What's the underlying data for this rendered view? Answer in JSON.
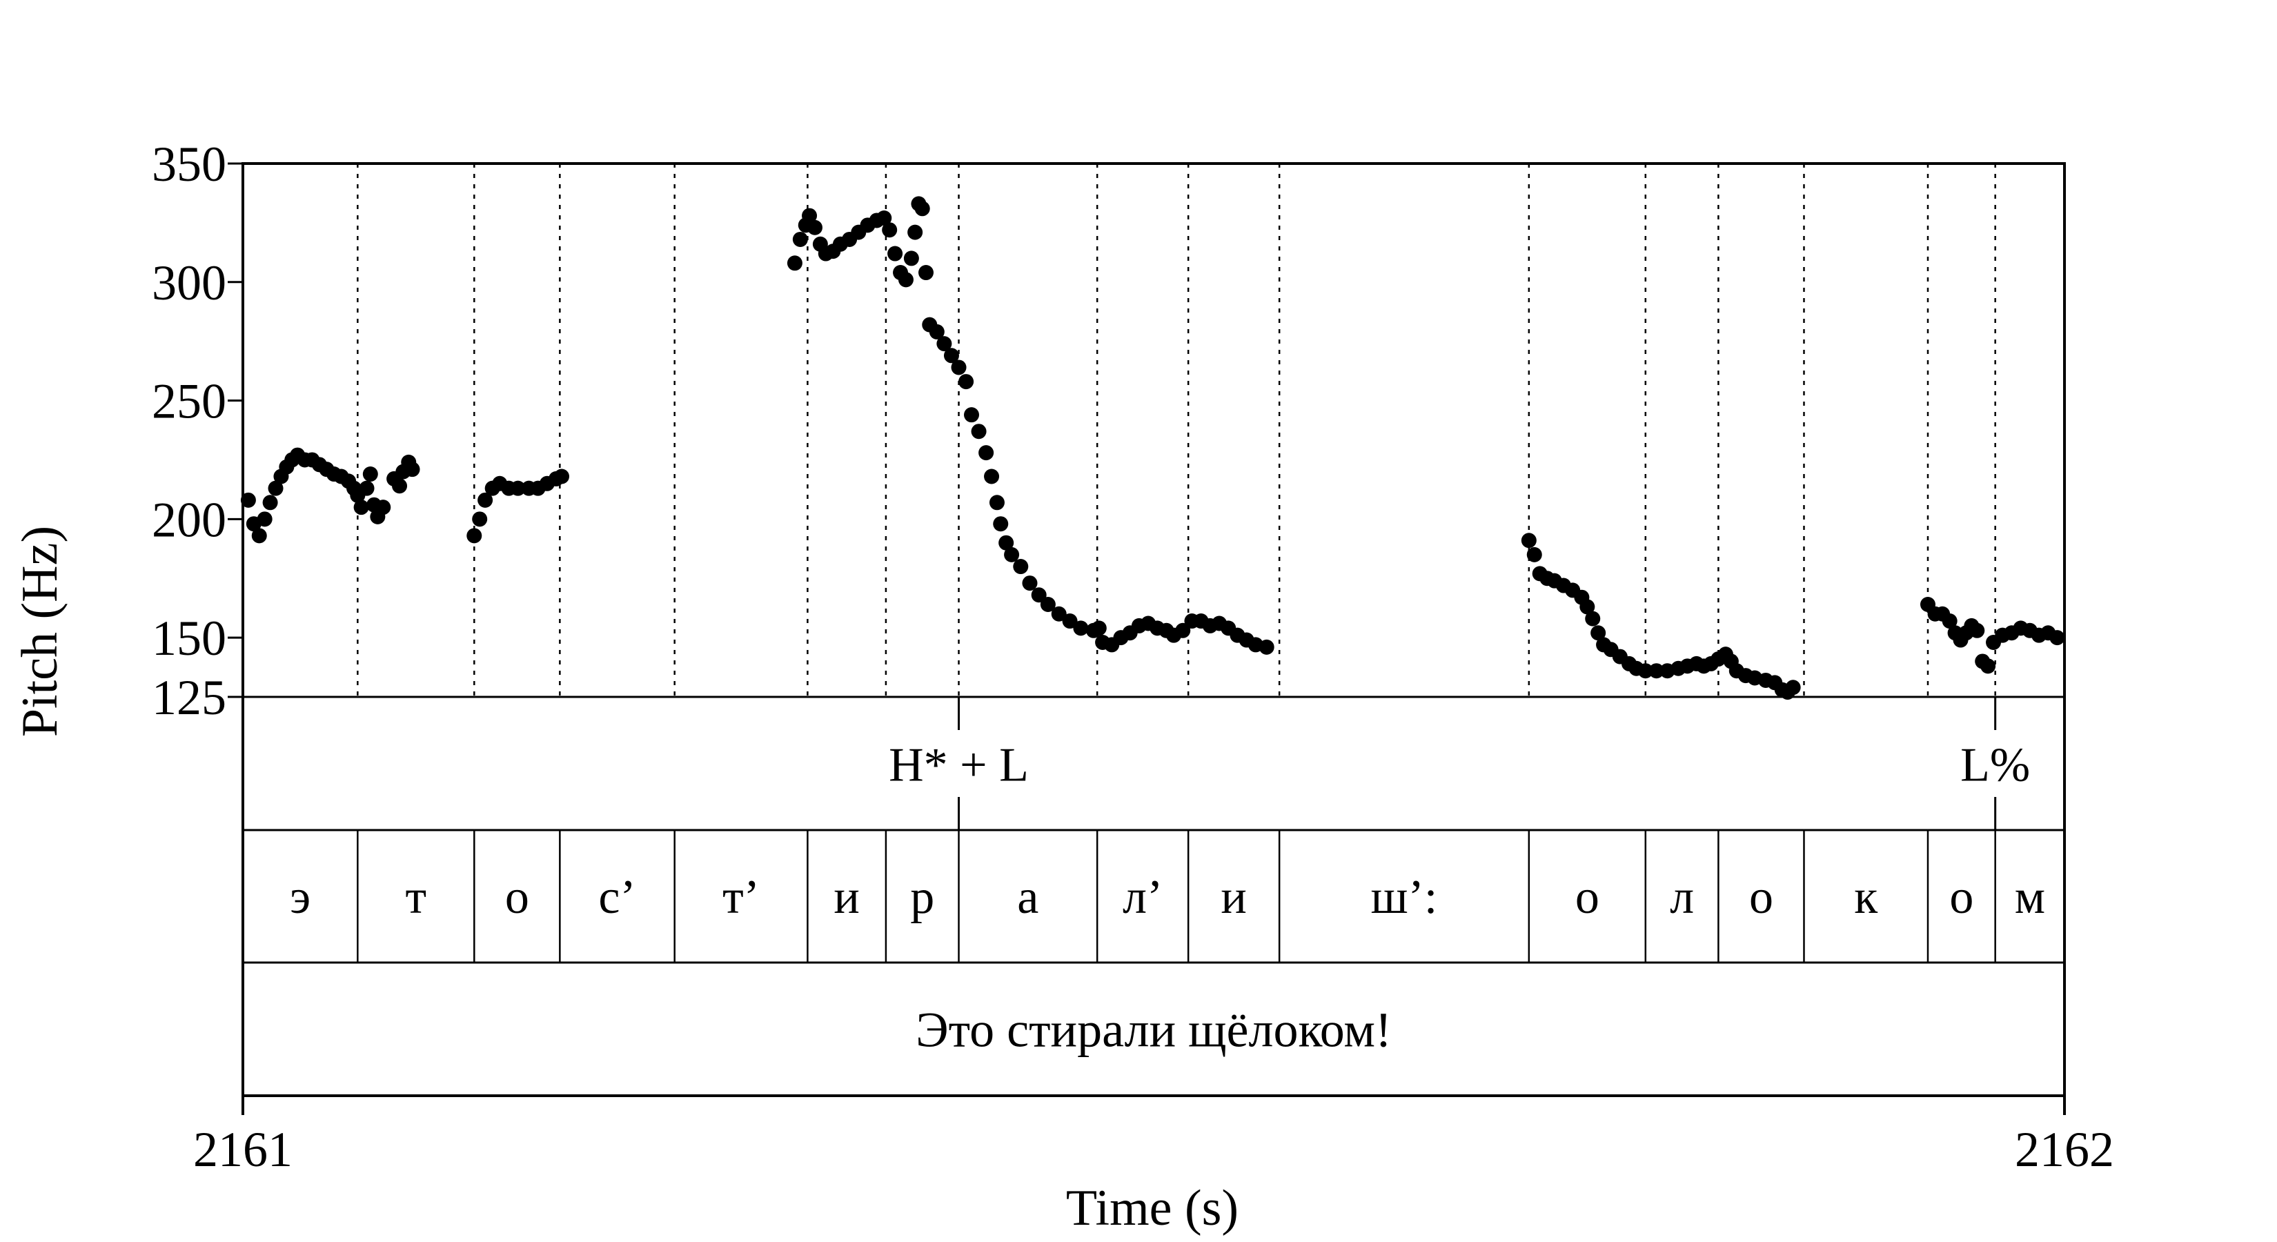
{
  "chart_data": {
    "type": "scatter",
    "xlabel": "Time (s)",
    "ylabel": "Pitch (Hz)",
    "xlim": [
      2161,
      2162
    ],
    "ylim": [
      125,
      350
    ],
    "x_ticks": [
      "2161",
      "2162"
    ],
    "y_ticks": [
      {
        "value": 350,
        "label": "350"
      },
      {
        "value": 300,
        "label": "300"
      },
      {
        "value": 250,
        "label": "250"
      },
      {
        "value": 200,
        "label": "200"
      },
      {
        "value": 150,
        "label": "150"
      },
      {
        "value": 125,
        "label": "125"
      }
    ],
    "segment_boundaries": [
      2161.063,
      2161.127,
      2161.174,
      2161.237,
      2161.31,
      2161.353,
      2161.393,
      2161.469,
      2161.519,
      2161.569,
      2161.706,
      2161.77,
      2161.81,
      2161.857,
      2161.925,
      2161.962
    ],
    "segments": [
      {
        "label": "э",
        "start": 2161.0,
        "end": 2161.063
      },
      {
        "label": "т",
        "start": 2161.063,
        "end": 2161.127
      },
      {
        "label": "о",
        "start": 2161.127,
        "end": 2161.174
      },
      {
        "label": "с’",
        "start": 2161.174,
        "end": 2161.237
      },
      {
        "label": "т’",
        "start": 2161.237,
        "end": 2161.31
      },
      {
        "label": "и",
        "start": 2161.31,
        "end": 2161.353
      },
      {
        "label": "р",
        "start": 2161.353,
        "end": 2161.393
      },
      {
        "label": "а",
        "start": 2161.393,
        "end": 2161.469
      },
      {
        "label": "л’",
        "start": 2161.469,
        "end": 2161.519
      },
      {
        "label": "и",
        "start": 2161.519,
        "end": 2161.569
      },
      {
        "label": "ш’:",
        "start": 2161.569,
        "end": 2161.706
      },
      {
        "label": "о",
        "start": 2161.706,
        "end": 2161.77
      },
      {
        "label": "л",
        "start": 2161.77,
        "end": 2161.81
      },
      {
        "label": "о",
        "start": 2161.81,
        "end": 2161.857
      },
      {
        "label": "к",
        "start": 2161.857,
        "end": 2161.925
      },
      {
        "label": "о",
        "start": 2161.925,
        "end": 2161.962
      },
      {
        "label": "м",
        "start": 2161.962,
        "end": 2162.0
      }
    ],
    "tones": [
      {
        "label": "H* + L",
        "time": 2161.393
      },
      {
        "label": "L%",
        "time": 2161.962
      }
    ],
    "sentence": "Это стирали щёлоком!",
    "series": [
      {
        "points": [
          [
            2161.003,
            208
          ],
          [
            2161.006,
            198
          ],
          [
            2161.009,
            193
          ],
          [
            2161.012,
            200
          ],
          [
            2161.015,
            207
          ],
          [
            2161.018,
            213
          ],
          [
            2161.021,
            218
          ],
          [
            2161.024,
            222
          ],
          [
            2161.027,
            225
          ],
          [
            2161.03,
            227
          ],
          [
            2161.034,
            225
          ],
          [
            2161.038,
            225
          ],
          [
            2161.042,
            223
          ],
          [
            2161.046,
            221
          ],
          [
            2161.05,
            219
          ],
          [
            2161.054,
            218
          ],
          [
            2161.058,
            216
          ],
          [
            2161.061,
            213
          ],
          [
            2161.063,
            210
          ],
          [
            2161.065,
            205
          ],
          [
            2161.068,
            213
          ],
          [
            2161.07,
            219
          ],
          [
            2161.072,
            206
          ],
          [
            2161.074,
            201
          ],
          [
            2161.077,
            205
          ],
          [
            2161.083,
            217
          ],
          [
            2161.086,
            214
          ],
          [
            2161.088,
            220
          ],
          [
            2161.091,
            224
          ],
          [
            2161.093,
            221
          ]
        ]
      },
      {
        "points": [
          [
            2161.127,
            193
          ],
          [
            2161.13,
            200
          ],
          [
            2161.133,
            208
          ],
          [
            2161.137,
            213
          ],
          [
            2161.141,
            215
          ],
          [
            2161.146,
            213
          ],
          [
            2161.151,
            213
          ],
          [
            2161.157,
            213
          ],
          [
            2161.162,
            213
          ],
          [
            2161.167,
            215
          ],
          [
            2161.172,
            217
          ],
          [
            2161.175,
            218
          ]
        ]
      },
      {
        "points": [
          [
            2161.303,
            308
          ],
          [
            2161.306,
            318
          ],
          [
            2161.309,
            324
          ],
          [
            2161.311,
            328
          ],
          [
            2161.314,
            323
          ],
          [
            2161.317,
            316
          ],
          [
            2161.32,
            312
          ],
          [
            2161.324,
            313
          ],
          [
            2161.328,
            316
          ],
          [
            2161.333,
            318
          ],
          [
            2161.338,
            321
          ],
          [
            2161.343,
            324
          ],
          [
            2161.348,
            326
          ],
          [
            2161.352,
            327
          ],
          [
            2161.355,
            322
          ],
          [
            2161.358,
            312
          ],
          [
            2161.361,
            304
          ],
          [
            2161.364,
            301
          ],
          [
            2161.367,
            310
          ],
          [
            2161.369,
            321
          ],
          [
            2161.371,
            333
          ],
          [
            2161.373,
            331
          ],
          [
            2161.375,
            304
          ],
          [
            2161.377,
            282
          ],
          [
            2161.381,
            279
          ],
          [
            2161.385,
            274
          ],
          [
            2161.389,
            269
          ],
          [
            2161.393,
            264
          ],
          [
            2161.397,
            258
          ],
          [
            2161.4,
            244
          ],
          [
            2161.404,
            237
          ],
          [
            2161.408,
            228
          ],
          [
            2161.411,
            218
          ],
          [
            2161.414,
            207
          ],
          [
            2161.416,
            198
          ],
          [
            2161.419,
            190
          ],
          [
            2161.422,
            185
          ],
          [
            2161.427,
            180
          ],
          [
            2161.432,
            173
          ],
          [
            2161.437,
            168
          ],
          [
            2161.442,
            164
          ],
          [
            2161.448,
            160
          ],
          [
            2161.454,
            157
          ],
          [
            2161.46,
            154
          ],
          [
            2161.467,
            153
          ],
          [
            2161.47,
            154
          ],
          [
            2161.472,
            148
          ],
          [
            2161.477,
            147
          ],
          [
            2161.482,
            150
          ],
          [
            2161.487,
            152
          ],
          [
            2161.492,
            155
          ],
          [
            2161.497,
            156
          ],
          [
            2161.502,
            154
          ],
          [
            2161.507,
            153
          ],
          [
            2161.511,
            151
          ],
          [
            2161.516,
            153
          ],
          [
            2161.521,
            157
          ],
          [
            2161.526,
            157
          ],
          [
            2161.531,
            155
          ],
          [
            2161.536,
            156
          ],
          [
            2161.541,
            154
          ],
          [
            2161.546,
            151
          ],
          [
            2161.551,
            149
          ],
          [
            2161.556,
            147
          ],
          [
            2161.562,
            146
          ]
        ]
      },
      {
        "points": [
          [
            2161.706,
            191
          ],
          [
            2161.709,
            185
          ],
          [
            2161.712,
            177
          ],
          [
            2161.716,
            175
          ],
          [
            2161.72,
            174
          ],
          [
            2161.725,
            172
          ],
          [
            2161.73,
            170
          ],
          [
            2161.735,
            167
          ],
          [
            2161.738,
            163
          ],
          [
            2161.741,
            158
          ],
          [
            2161.744,
            152
          ],
          [
            2161.747,
            147
          ],
          [
            2161.751,
            145
          ],
          [
            2161.756,
            142
          ],
          [
            2161.761,
            139
          ],
          [
            2161.765,
            137
          ],
          [
            2161.77,
            136
          ],
          [
            2161.776,
            136
          ],
          [
            2161.782,
            136
          ],
          [
            2161.788,
            137
          ],
          [
            2161.793,
            138
          ],
          [
            2161.798,
            139
          ],
          [
            2161.802,
            138
          ],
          [
            2161.806,
            139
          ],
          [
            2161.81,
            141
          ],
          [
            2161.814,
            143
          ],
          [
            2161.817,
            140
          ],
          [
            2161.82,
            136
          ],
          [
            2161.825,
            134
          ],
          [
            2161.83,
            133
          ],
          [
            2161.836,
            132
          ],
          [
            2161.841,
            131
          ],
          [
            2161.845,
            128
          ],
          [
            2161.848,
            127
          ],
          [
            2161.851,
            129
          ]
        ]
      },
      {
        "points": [
          [
            2161.925,
            164
          ],
          [
            2161.929,
            160
          ],
          [
            2161.933,
            160
          ],
          [
            2161.937,
            157
          ],
          [
            2161.94,
            152
          ],
          [
            2161.943,
            149
          ],
          [
            2161.946,
            152
          ],
          [
            2161.949,
            155
          ],
          [
            2161.952,
            153
          ],
          [
            2161.955,
            140
          ],
          [
            2161.958,
            138
          ],
          [
            2161.961,
            148
          ],
          [
            2161.966,
            151
          ],
          [
            2161.971,
            152
          ],
          [
            2161.976,
            154
          ],
          [
            2161.981,
            153
          ],
          [
            2161.986,
            151
          ],
          [
            2161.991,
            152
          ],
          [
            2161.996,
            150
          ]
        ]
      }
    ]
  }
}
